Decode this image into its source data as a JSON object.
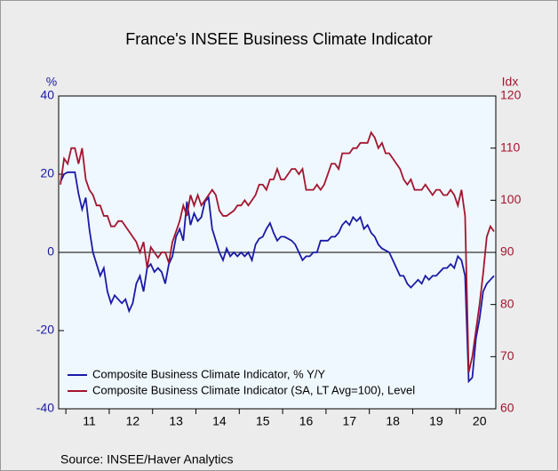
{
  "chart_data": {
    "type": "line",
    "title": "France's INSEE Business Climate Indicator",
    "y_label": "%",
    "y2_label": "Idx",
    "source": "Source:   INSEE/Haver Analytics",
    "categories": [
      null,
      null,
      null,
      null,
      null,
      null,
      null,
      null,
      "11",
      null,
      null,
      null,
      null,
      null,
      null,
      null,
      null,
      null,
      null,
      null,
      "12",
      null,
      null,
      null,
      null,
      null,
      null,
      null,
      null,
      null,
      null,
      null,
      "13",
      null,
      null,
      null,
      null,
      null,
      null,
      null,
      null,
      null,
      null,
      null,
      "14",
      null,
      null,
      null,
      null,
      null,
      null,
      null,
      null,
      null,
      null,
      null,
      "15",
      null,
      null,
      null,
      null,
      null,
      null,
      null,
      null,
      null,
      null,
      null,
      "16",
      null,
      null,
      null,
      null,
      null,
      null,
      null,
      null,
      null,
      null,
      null,
      "17",
      null,
      null,
      null,
      null,
      null,
      null,
      null,
      null,
      null,
      null,
      null,
      "18",
      null,
      null,
      null,
      null,
      null,
      null,
      null,
      null,
      null,
      null,
      null,
      "19",
      null,
      null,
      null,
      null,
      null,
      null,
      null,
      null,
      null,
      null,
      null,
      "20",
      null,
      null,
      null,
      null
    ],
    "series": [
      {
        "name": "Composite Business Climate Indicator, % Y/Y",
        "color": "#1a1aa6",
        "axis": "y",
        "values": [
          18,
          20,
          20.5,
          20.5,
          20.5,
          15,
          11,
          14,
          6,
          0,
          -3,
          -6,
          -4,
          -10,
          -13,
          -11,
          -12,
          -13,
          -12,
          -15,
          -13,
          -8,
          -6,
          -10,
          -4,
          -3,
          -5,
          -4,
          -5,
          -8,
          -3,
          -1,
          4,
          6,
          3,
          13,
          7,
          10,
          8,
          9,
          13,
          14,
          6,
          3,
          0,
          -2,
          1,
          -1,
          0,
          -1,
          0,
          -1,
          0,
          -2,
          2,
          3.5,
          4,
          6,
          7.5,
          5,
          3,
          4,
          4,
          3.5,
          3,
          2,
          0,
          -2,
          -1,
          -1,
          0,
          0,
          3,
          3,
          3,
          4,
          4,
          5,
          7,
          8,
          7,
          9,
          8,
          9,
          6,
          7,
          5,
          4,
          2,
          1,
          0.5,
          0,
          -2,
          -4,
          -6,
          -6,
          -8,
          -9,
          -8,
          -7,
          -8,
          -6,
          -7,
          -6,
          -6,
          -5,
          -4,
          -4,
          -3,
          -4,
          -1,
          -2,
          -6,
          -33,
          -32,
          -22,
          -17,
          -10,
          -8,
          -7,
          -6
        ]
      },
      {
        "name": "Composite Business Climate Indicator (SA, LT Avg=100), Level",
        "color": "#a3152f",
        "axis": "y2",
        "values": [
          103,
          108,
          107,
          110,
          110,
          107,
          110,
          104,
          102,
          101,
          99,
          99,
          97,
          97,
          95,
          95,
          96,
          96,
          95,
          94,
          93,
          92,
          90,
          92,
          87,
          91,
          90,
          89,
          90,
          90,
          88,
          92,
          94,
          96,
          99,
          97,
          101,
          99,
          101,
          99,
          100,
          101,
          102,
          101,
          98,
          97,
          97,
          97.5,
          98,
          99,
          99,
          100,
          99,
          100,
          101,
          103,
          103,
          102,
          104,
          104,
          106,
          104,
          104,
          105,
          106,
          106,
          105,
          106,
          102,
          102,
          102,
          103,
          102,
          103,
          105,
          107,
          107,
          106,
          109,
          109,
          109,
          110,
          110,
          111,
          111,
          111,
          113,
          112,
          110,
          111,
          109,
          109,
          108,
          107,
          106,
          104,
          103,
          104,
          102,
          102,
          102,
          103,
          102,
          101,
          102,
          102,
          101,
          101,
          102,
          101,
          99,
          102,
          97,
          67,
          70,
          75,
          80,
          86,
          93,
          95,
          94
        ]
      }
    ],
    "ylim": [
      -40,
      40
    ],
    "yticks": [
      -40,
      -20,
      0,
      20,
      40
    ],
    "y2lim": [
      60,
      120
    ],
    "y2ticks": [
      60,
      70,
      80,
      90,
      100,
      110,
      120
    ],
    "legend": "lower left"
  }
}
